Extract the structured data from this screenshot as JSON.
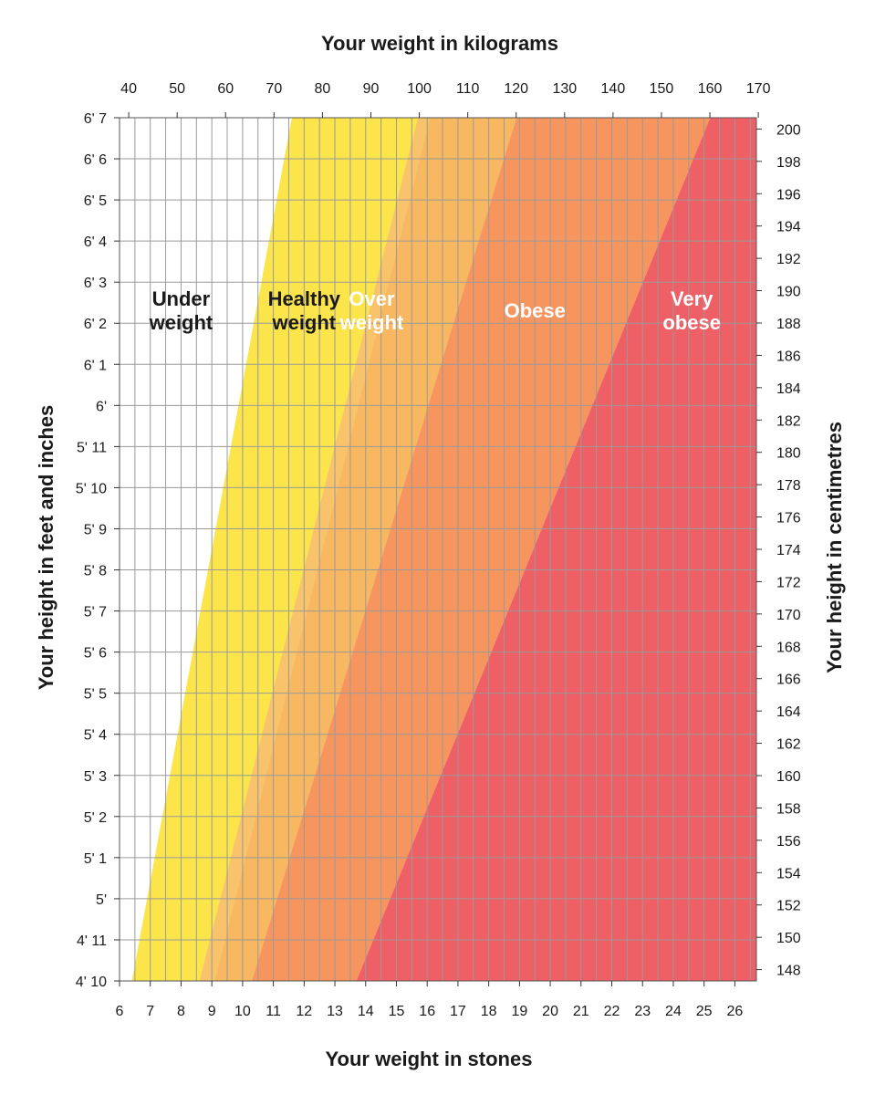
{
  "chart_data": {
    "type": "area",
    "title": "",
    "x_top_label": "Your weight in kilograms",
    "x_bottom_label": "Your weight in stones",
    "y_left_label": "Your height in feet and inches",
    "y_right_label": "Your height in centimetres",
    "x_stones_range": [
      6,
      26.7
    ],
    "x_kg_range": [
      38.1,
      169.6
    ],
    "y_inches_range": [
      58,
      79
    ],
    "y_cm_range": [
      147.3,
      200.7
    ],
    "grid": true,
    "x_top_ticks": [
      "40",
      "50",
      "60",
      "70",
      "80",
      "90",
      "100",
      "110",
      "120",
      "130",
      "140",
      "150",
      "160",
      "170"
    ],
    "x_bottom_ticks": [
      "6",
      "7",
      "8",
      "9",
      "10",
      "11",
      "12",
      "13",
      "14",
      "15",
      "16",
      "17",
      "18",
      "19",
      "20",
      "21",
      "22",
      "23",
      "24",
      "25",
      "26"
    ],
    "y_left_ticks": [
      "4' 10",
      "4' 11",
      "5'",
      "5' 1",
      "5' 2",
      "5' 3",
      "5' 4",
      "5' 5",
      "5' 6",
      "5' 7",
      "5' 8",
      "5' 9",
      "5' 10",
      "5' 11",
      "6'",
      "6' 1",
      "6' 2",
      "6' 3",
      "6' 4",
      "6' 5",
      "6' 6",
      "6' 7"
    ],
    "y_right_ticks": [
      "148",
      "150",
      "152",
      "154",
      "156",
      "158",
      "160",
      "162",
      "164",
      "166",
      "168",
      "170",
      "172",
      "174",
      "176",
      "178",
      "180",
      "182",
      "184",
      "186",
      "188",
      "190",
      "192",
      "194",
      "196",
      "198",
      "200"
    ],
    "zones": [
      {
        "name": "Under weight",
        "lines": [
          "Under",
          "weight"
        ],
        "color": "#ffffff",
        "text_color": "#1a1a1a",
        "label_x_stones": 8.0,
        "label_y_inches": 74.0
      },
      {
        "name": "Healthy weight",
        "lines": [
          "Healthy",
          "weight"
        ],
        "color": "#fbe54a",
        "text_color": "#1a1a1a",
        "label_x_stones": 12.0,
        "label_y_inches": 74.0
      },
      {
        "name": "Over weight",
        "lines": [
          "Over",
          "weight"
        ],
        "color": "#f7b861",
        "text_color": "#ffffff",
        "label_x_stones": 14.2,
        "label_y_inches": 74.0
      },
      {
        "name": "Obese",
        "lines": [
          "Obese"
        ],
        "color": "#f6955e",
        "text_color": "#ffffff",
        "label_x_stones": 19.5,
        "label_y_inches": 74.0
      },
      {
        "name": "Very obese",
        "lines": [
          "Very",
          "obese"
        ],
        "color": "#ee5f66",
        "text_color": "#ffffff",
        "label_x_stones": 24.6,
        "label_y_inches": 74.0
      }
    ],
    "boundaries_stones": [
      {
        "name": "under-healthy",
        "at_bottom": 6.4,
        "at_top": 11.6
      },
      {
        "name": "healthy-over",
        "at_bottom": 8.6,
        "at_top": 15.7
      },
      {
        "name": "over-obese",
        "at_bottom": 10.3,
        "at_top": 18.9
      },
      {
        "name": "obese-veryobese",
        "at_bottom": 13.7,
        "at_top": 25.2
      }
    ],
    "shading_band": {
      "color": "#f9c972",
      "at_bottom": [
        8.6,
        9.1
      ],
      "at_top": [
        15.7,
        16.1
      ]
    }
  }
}
